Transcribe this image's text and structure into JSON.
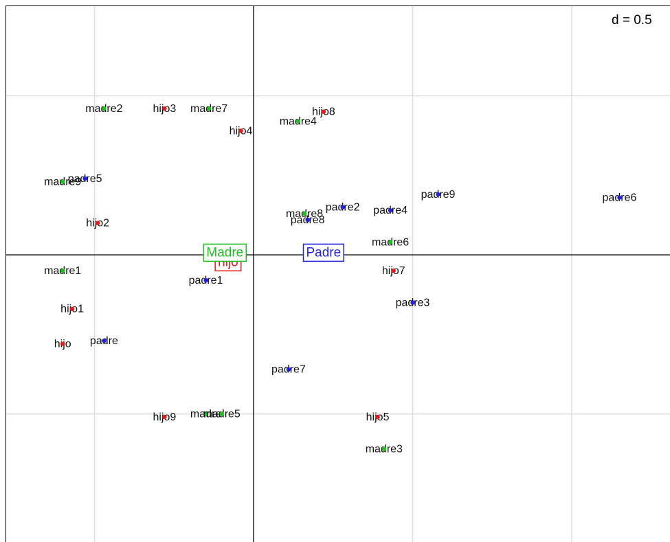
{
  "scale_label": "d = 0.5",
  "colors": {
    "hijo": "#e41a1c",
    "madre": "#1fbf1f",
    "padre": "#2222e0",
    "grid": "#dddddd",
    "axis": "#000000"
  },
  "chart_data": {
    "type": "scatter",
    "title": "",
    "xlabel": "",
    "ylabel": "",
    "grid_step": 0.5,
    "xlim": [
      -0.77,
      1.31
    ],
    "ylim": [
      -0.84,
      0.79
    ],
    "groups": [
      {
        "name": "hijo",
        "box_label": "hijo",
        "color": "#e41a1c",
        "centroid": [
          -0.08,
          -0.02
        ]
      },
      {
        "name": "Madre",
        "box_label": "Madre",
        "color": "#1fbf1f",
        "centroid": [
          -0.09,
          0.01
        ]
      },
      {
        "name": "Padre",
        "box_label": "Padre",
        "color": "#2222e0",
        "centroid": [
          0.22,
          0.01
        ]
      }
    ],
    "series": [
      {
        "name": "hijo",
        "points": [
          {
            "label": "hijo",
            "x": -0.6,
            "y": -0.28
          },
          {
            "label": "hijo1",
            "x": -0.57,
            "y": -0.17
          },
          {
            "label": "hijo2",
            "x": -0.49,
            "y": 0.1
          },
          {
            "label": "hijo3",
            "x": -0.28,
            "y": 0.46
          },
          {
            "label": "hijo4",
            "x": -0.04,
            "y": 0.39
          },
          {
            "label": "hijo5",
            "x": 0.39,
            "y": -0.51
          },
          {
            "label": "hijo7",
            "x": 0.44,
            "y": -0.05
          },
          {
            "label": "hijo8",
            "x": 0.22,
            "y": 0.45
          },
          {
            "label": "hijo9",
            "x": -0.28,
            "y": -0.51
          }
        ]
      },
      {
        "name": "madre",
        "points": [
          {
            "label": "madre",
            "x": -0.15,
            "y": -0.5
          },
          {
            "label": "madre1",
            "x": -0.6,
            "y": -0.05
          },
          {
            "label": "madre2",
            "x": -0.47,
            "y": 0.46
          },
          {
            "label": "madre3",
            "x": 0.41,
            "y": -0.61
          },
          {
            "label": "madre4",
            "x": 0.14,
            "y": 0.42
          },
          {
            "label": "madre5",
            "x": -0.1,
            "y": -0.5
          },
          {
            "label": "madre6",
            "x": 0.43,
            "y": 0.04
          },
          {
            "label": "madre7",
            "x": -0.14,
            "y": 0.46
          },
          {
            "label": "madre8",
            "x": 0.16,
            "y": 0.13
          },
          {
            "label": "madre9",
            "x": -0.6,
            "y": 0.23
          }
        ]
      },
      {
        "name": "padre",
        "points": [
          {
            "label": "padre",
            "x": -0.47,
            "y": -0.27
          },
          {
            "label": "padre1",
            "x": -0.15,
            "y": -0.08
          },
          {
            "label": "padre2",
            "x": 0.28,
            "y": 0.15
          },
          {
            "label": "padre3",
            "x": 0.5,
            "y": -0.15
          },
          {
            "label": "padre4",
            "x": 0.43,
            "y": 0.14
          },
          {
            "label": "padre5",
            "x": -0.53,
            "y": 0.24
          },
          {
            "label": "padre6",
            "x": 1.15,
            "y": 0.18
          },
          {
            "label": "padre7",
            "x": 0.11,
            "y": -0.36
          },
          {
            "label": "padre8",
            "x": 0.17,
            "y": 0.11
          },
          {
            "label": "padre9",
            "x": 0.58,
            "y": 0.19
          }
        ]
      }
    ]
  }
}
